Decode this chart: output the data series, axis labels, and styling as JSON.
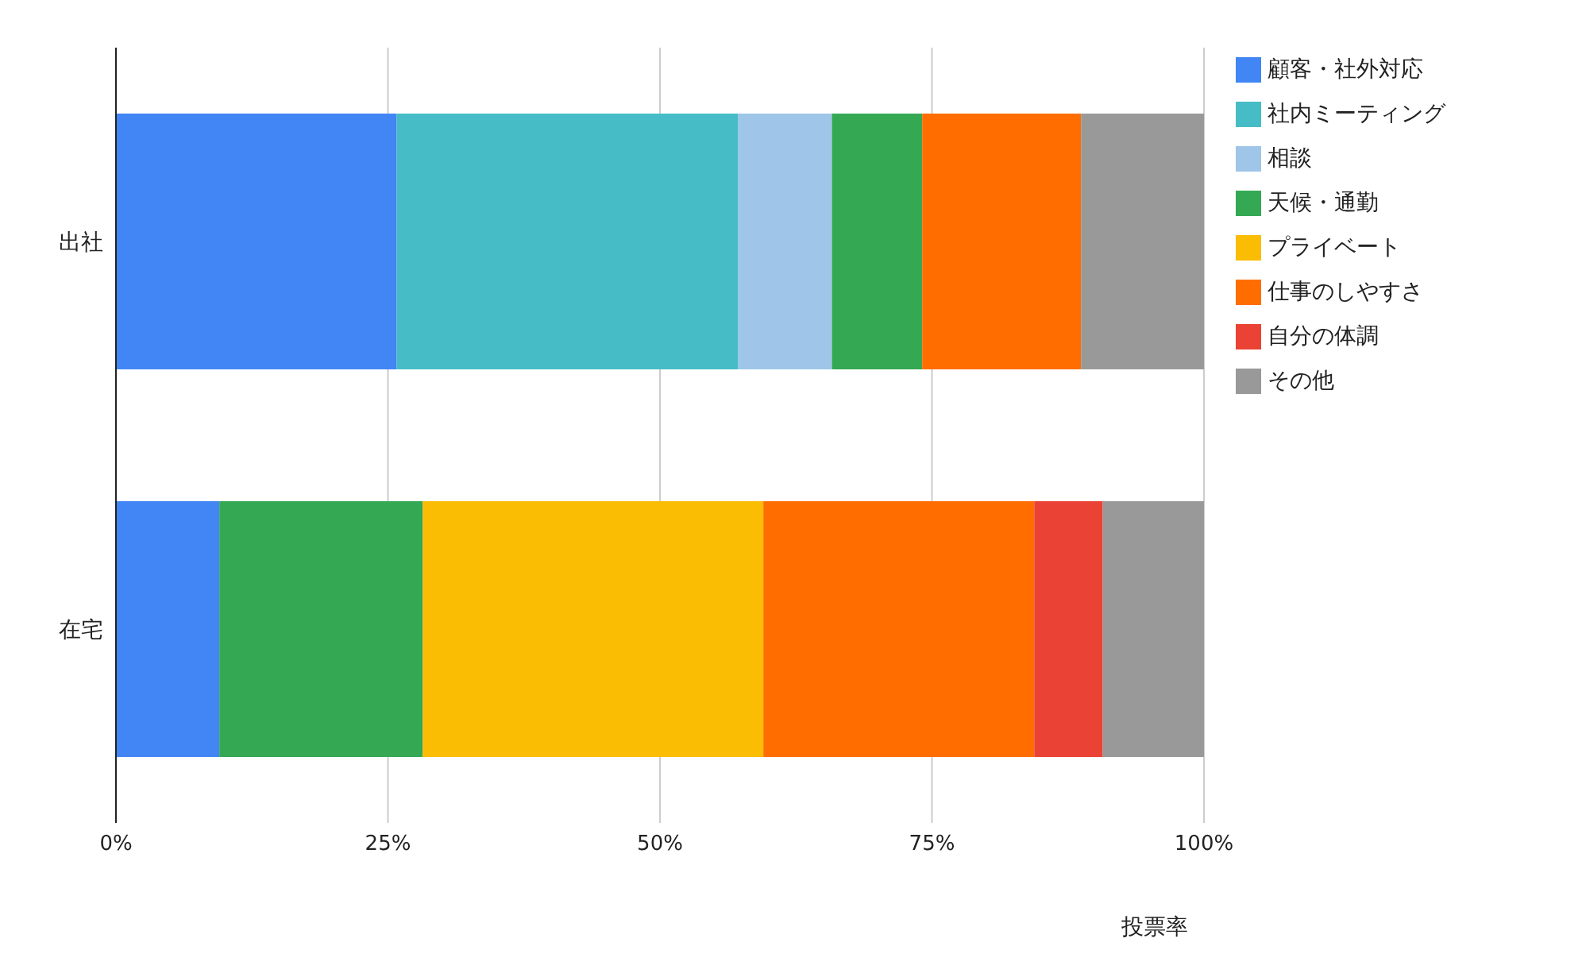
{
  "chart_data": {
    "type": "bar",
    "orientation": "horizontal",
    "stacked": true,
    "categories": [
      "出社",
      "在宅"
    ],
    "series": [
      {
        "name": "顧客・社外対応",
        "color": "#4285f4",
        "values": [
          25.8,
          9.5
        ]
      },
      {
        "name": "社内ミーティング",
        "color": "#46bdc6",
        "values": [
          31.4,
          0
        ]
      },
      {
        "name": "相談",
        "color": "#9fc5e8",
        "values": [
          8.6,
          0
        ]
      },
      {
        "name": "天候・通勤",
        "color": "#34a853",
        "values": [
          8.3,
          18.7
        ]
      },
      {
        "name": "プライベート",
        "color": "#fbbc04",
        "values": [
          0,
          31.3
        ]
      },
      {
        "name": "仕事のしやすさ",
        "color": "#ff6d01",
        "values": [
          14.6,
          24.9
        ]
      },
      {
        "name": "自分の体調",
        "color": "#ea4335",
        "values": [
          0,
          6.3
        ]
      },
      {
        "name": "その他",
        "color": "#999999",
        "values": [
          11.3,
          9.3
        ]
      }
    ],
    "xlim": [
      0,
      100
    ],
    "xticks": [
      {
        "value": 0,
        "label": "0%"
      },
      {
        "value": 25,
        "label": "25%"
      },
      {
        "value": 50,
        "label": "50%"
      },
      {
        "value": 75,
        "label": "75%"
      },
      {
        "value": 100,
        "label": "100%"
      }
    ],
    "xlabel": "投票率",
    "grid": "x",
    "legend": "right"
  }
}
